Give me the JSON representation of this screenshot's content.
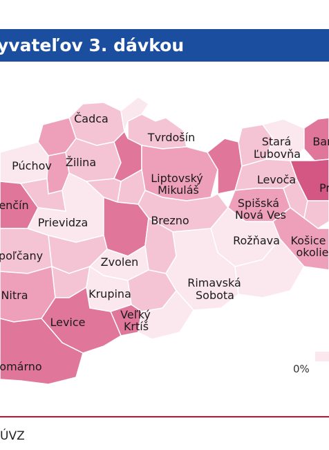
{
  "header": {
    "title": "yvateľov 3. dávkou"
  },
  "map": {
    "districts": [
      {
        "id": "cadca",
        "label": "Čadca"
      },
      {
        "id": "tvrdosin",
        "label": "Tvrdošín"
      },
      {
        "id": "stara-lubovna",
        "label_lines": [
          "Stará",
          "Ľubovňa"
        ]
      },
      {
        "id": "bardejov",
        "label": "Bar"
      },
      {
        "id": "puchov",
        "label": "Púchov"
      },
      {
        "id": "zilina",
        "label": "Žilina"
      },
      {
        "id": "liptovsky-mikulas",
        "label_lines": [
          "Liptovský",
          "Mikuláš"
        ]
      },
      {
        "id": "levoca",
        "label": "Levoča"
      },
      {
        "id": "presov",
        "label": "Pr"
      },
      {
        "id": "trencin",
        "label": "enčín"
      },
      {
        "id": "spisska-nova-ves",
        "label_lines": [
          "Spišská",
          "Nová Ves"
        ]
      },
      {
        "id": "prievidza",
        "label": "Prievidza"
      },
      {
        "id": "brezno",
        "label": "Brezno"
      },
      {
        "id": "roznava",
        "label": "Rožňava"
      },
      {
        "id": "kosice-okolie",
        "label_lines": [
          "Košice",
          "okolie"
        ]
      },
      {
        "id": "topolcany",
        "label": "poľčany"
      },
      {
        "id": "zvolen",
        "label": "Zvolen"
      },
      {
        "id": "rimavska-sobota",
        "label_lines": [
          "Rimavská",
          "Sobota"
        ]
      },
      {
        "id": "nitra",
        "label": "Nitra"
      },
      {
        "id": "krupina",
        "label": "Krupina"
      },
      {
        "id": "velky-krtis",
        "label_lines": [
          "Veľký",
          "Krtíš"
        ]
      },
      {
        "id": "levice",
        "label": "Levice"
      },
      {
        "id": "komarno",
        "label": "omárno"
      }
    ],
    "colors": {
      "lightest": "#fbe8ef",
      "light": "#f5c4d4",
      "medium": "#ee9fba",
      "strong": "#e0769a",
      "darkest": "#d45683",
      "border": "#ffffff"
    }
  },
  "legend": {
    "min_label": "0%"
  },
  "footer": {
    "source": "ÚVZ"
  }
}
